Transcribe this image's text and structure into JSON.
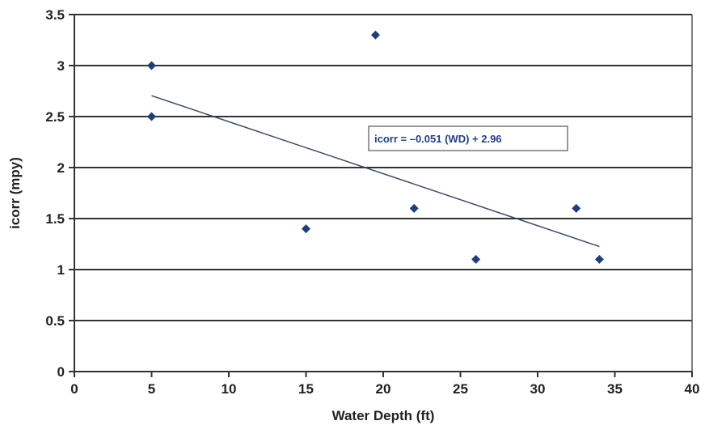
{
  "chart_data": {
    "type": "scatter",
    "title": "",
    "xlabel": "Water Depth (ft)",
    "ylabel": "icorr (mpy)",
    "xlim": [
      0,
      40
    ],
    "ylim": [
      0,
      3.5
    ],
    "x_ticks": [
      0,
      5,
      10,
      15,
      20,
      25,
      30,
      35,
      40
    ],
    "y_ticks": [
      0,
      0.5,
      1,
      1.5,
      2,
      2.5,
      3,
      3.5
    ],
    "x_tick_labels": [
      "0",
      "5",
      "10",
      "15",
      "20",
      "25",
      "30",
      "35",
      "40"
    ],
    "y_tick_labels": [
      "0",
      "0.5",
      "1",
      "1.5",
      "2",
      "2.5",
      "3",
      "3.5"
    ],
    "grid": "horizontal",
    "legend": "none",
    "series": [
      {
        "marker": "diamond",
        "color": "#1f3f7a",
        "x": [
          5,
          5,
          15,
          19.5,
          22,
          26,
          32.5,
          34
        ],
        "y": [
          3.0,
          2.5,
          1.4,
          3.3,
          1.6,
          1.1,
          1.6,
          1.1
        ]
      }
    ],
    "trendline": {
      "slope": -0.051,
      "intercept": 2.96,
      "x_range": [
        5,
        34
      ],
      "color": "#3a4a6a"
    },
    "annotation": {
      "text": "icorr = –0.051 (WD) + 2.96",
      "color": "#1f3f8a"
    }
  }
}
